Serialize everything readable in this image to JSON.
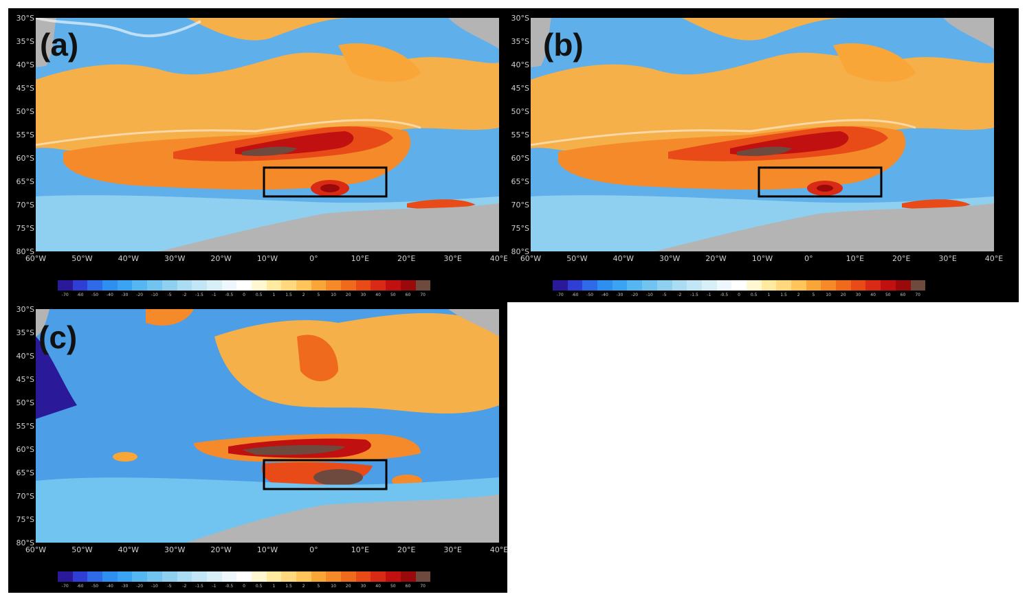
{
  "panels": [
    {
      "id": "a",
      "label": "(a)"
    },
    {
      "id": "b",
      "label": "(b)"
    },
    {
      "id": "c",
      "label": "(c)"
    }
  ],
  "map": {
    "lat_labels": [
      "30°S",
      "35°S",
      "40°S",
      "45°S",
      "50°S",
      "55°S",
      "60°S",
      "65°S",
      "70°S",
      "75°S",
      "80°S"
    ],
    "lat_values": [
      -30,
      -35,
      -40,
      -45,
      -50,
      -55,
      -60,
      -65,
      -70,
      -75,
      -80
    ],
    "lon_labels": [
      "60°W",
      "50°W",
      "40°W",
      "30°W",
      "20°W",
      "10°W",
      "0°",
      "10°E",
      "20°E",
      "30°E",
      "40°E"
    ],
    "lon_values": [
      -60,
      -50,
      -40,
      -30,
      -20,
      -10,
      0,
      10,
      20,
      30,
      40
    ],
    "box": {
      "lon_min": -11,
      "lon_max": 16,
      "lat_min": -68,
      "lat_max": -62
    }
  },
  "colorbar": {
    "labels": [
      "-70",
      "-60",
      "-50",
      "-40",
      "-30",
      "-20",
      "-10",
      "-5",
      "-2",
      "-1.5",
      "-1",
      "-0.5",
      "0",
      "0.5",
      "1",
      "1.5",
      "2",
      "5",
      "10",
      "20",
      "30",
      "40",
      "50",
      "60",
      "70"
    ],
    "colors": [
      "#2a1a9a",
      "#2f3fd6",
      "#2f6ae8",
      "#2f8ff0",
      "#3aa4f2",
      "#55b6f2",
      "#72c4f0",
      "#8fd0f0",
      "#aadcf4",
      "#c2e6f6",
      "#d8eff8",
      "#eef8fc",
      "#ffffff",
      "#fff8d0",
      "#ffeaa0",
      "#ffd880",
      "#ffc55a",
      "#f8a638",
      "#f58a2a",
      "#f06a1e",
      "#e84a18",
      "#d82a14",
      "#c01010",
      "#9a0a0a",
      "#6e4a3e"
    ]
  }
}
